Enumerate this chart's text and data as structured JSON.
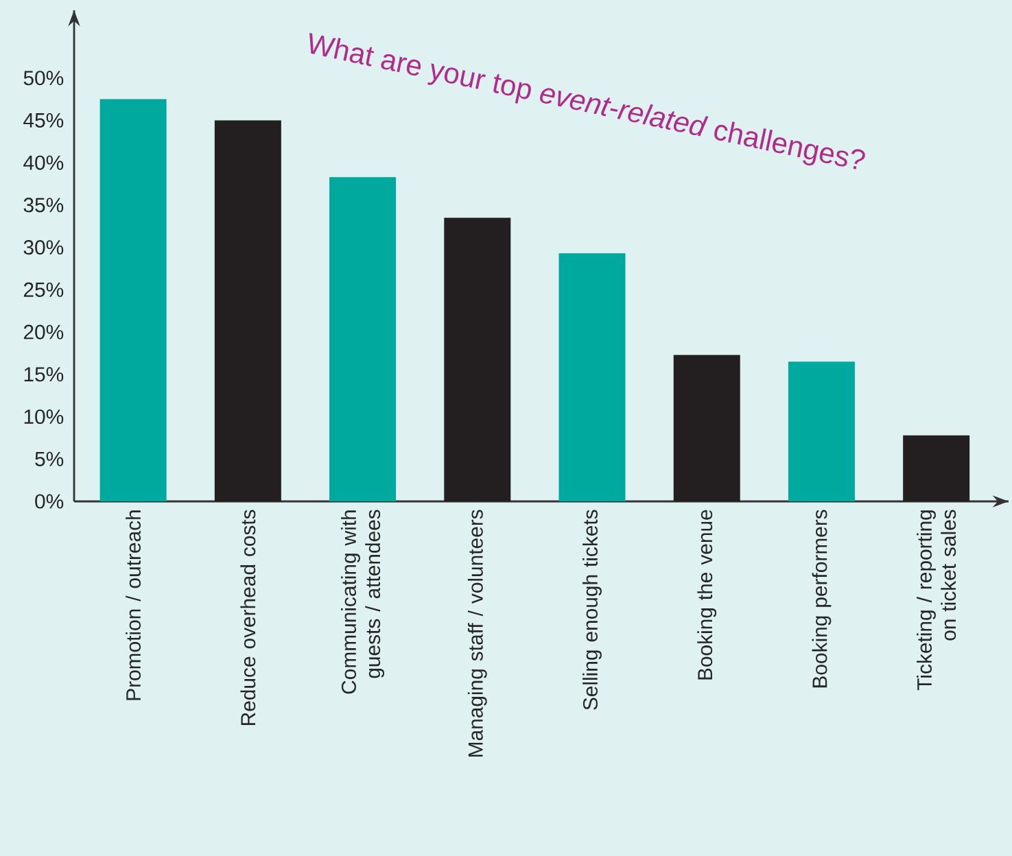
{
  "chart_data": {
    "type": "bar",
    "title": "What are your top *event-related* challenges?",
    "categories": [
      "Promotion / outreach",
      "Reduce overhead costs",
      "Communicating with guests / attendees",
      "Managing staff / volunteers",
      "Selling enough tickets",
      "Booking the venue",
      "Booking performers",
      "Ticketing / reporting on ticket sales"
    ],
    "values": [
      47.5,
      45,
      38.3,
      33.5,
      29.3,
      17.3,
      16.5,
      7.8
    ],
    "colors": [
      "#00a99d",
      "#231f20",
      "#00a99d",
      "#231f20",
      "#00a99d",
      "#231f20",
      "#00a99d",
      "#231f20"
    ],
    "ylim": [
      0,
      58
    ],
    "yticks": [
      {
        "value": 0,
        "label": "0%"
      },
      {
        "value": 5,
        "label": "5%"
      },
      {
        "value": 10,
        "label": "10%"
      },
      {
        "value": 15,
        "label": "15%"
      },
      {
        "value": 20,
        "label": "20%"
      },
      {
        "value": 25,
        "label": "25%"
      },
      {
        "value": 30,
        "label": "30%"
      },
      {
        "value": 35,
        "label": "35%"
      },
      {
        "value": 40,
        "label": "40%"
      },
      {
        "value": 45,
        "label": "45%"
      },
      {
        "value": 50,
        "label": "50%"
      }
    ],
    "grid": false
  }
}
